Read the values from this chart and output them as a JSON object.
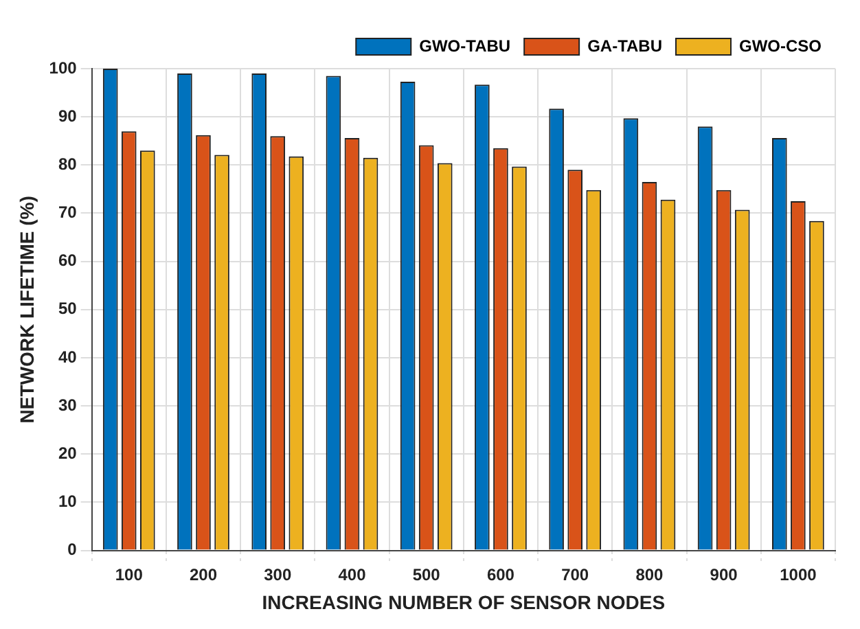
{
  "chart_data": {
    "type": "bar",
    "xlabel": "INCREASING NUMBER OF SENSOR NODES",
    "ylabel": "NETWORK LIFETIME (%)",
    "categories": [
      "100",
      "200",
      "300",
      "400",
      "500",
      "600",
      "700",
      "800",
      "900",
      "1000"
    ],
    "series": [
      {
        "name": "GWO-TABU",
        "color": "#0072bd",
        "values": [
          100,
          99,
          99,
          98.5,
          97.3,
          96.7,
          91.7,
          89.7,
          88,
          85.6
        ]
      },
      {
        "name": "GA-TABU",
        "color": "#d95319",
        "values": [
          87,
          86.2,
          86,
          85.6,
          84.1,
          83.5,
          79,
          76.5,
          74.8,
          72.5
        ]
      },
      {
        "name": "GWO-CSO",
        "color": "#edb120",
        "values": [
          83,
          82.1,
          81.8,
          81.5,
          80.4,
          79.7,
          74.8,
          72.8,
          70.7,
          68.4
        ]
      }
    ],
    "ylim": [
      0,
      100
    ],
    "yticks": [
      0,
      10,
      20,
      30,
      40,
      50,
      60,
      70,
      80,
      90,
      100
    ],
    "grid": true,
    "legend": "top right"
  }
}
